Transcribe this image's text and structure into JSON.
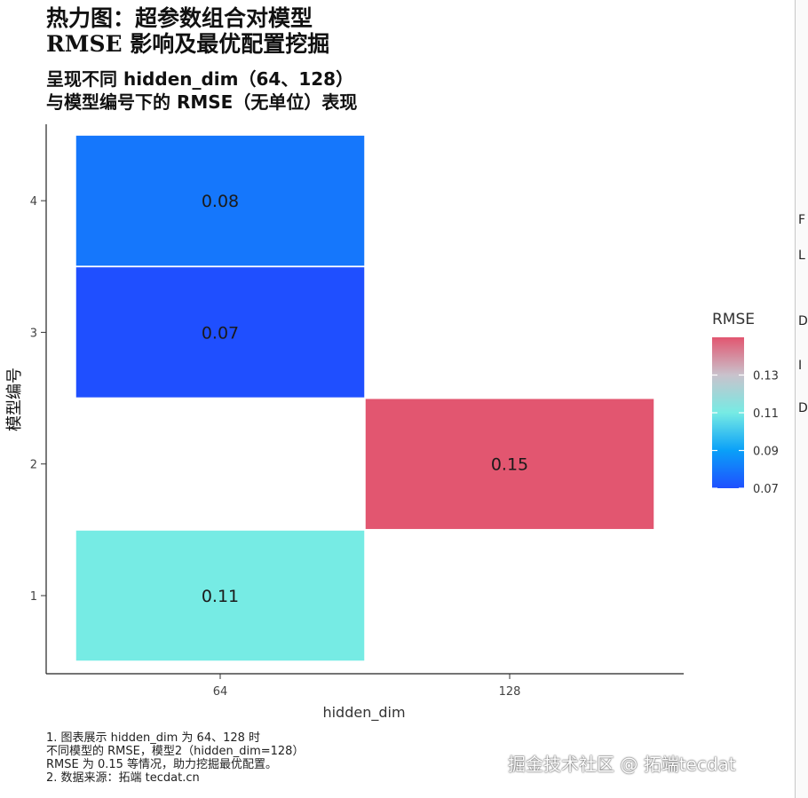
{
  "title_lines": [
    "热力图：超参数组合对模型",
    "RMSE 影响及最优配置挖掘"
  ],
  "subtitle_lines": [
    "呈现不同 hidden_dim（64、128）",
    "与模型编号下的 RMSE（无单位）表现"
  ],
  "caption_lines": [
    "1. 图表展示 hidden_dim 为 64、128 时",
    "不同模型的 RMSE，模型2（hidden_dim=128）",
    "RMSE 为 0.15 等情况，助力挖掘最优配置。",
    "2. 数据来源：拓端 tecdat.cn"
  ],
  "watermark": "掘金技术社区 @ 拓端tecdat",
  "edge_glyphs": [
    "F",
    "L",
    "D",
    "I",
    "D"
  ],
  "chart_data": {
    "type": "heatmap",
    "x_categories": [
      "64",
      "128"
    ],
    "y_categories": [
      "1",
      "2",
      "3",
      "4"
    ],
    "xlabel": "hidden_dim",
    "ylabel": "模型编号",
    "cells": [
      {
        "x": "64",
        "y": "1",
        "value": 0.11,
        "label": "0.11"
      },
      {
        "x": "128",
        "y": "2",
        "value": 0.15,
        "label": "0.15"
      },
      {
        "x": "64",
        "y": "3",
        "value": 0.07,
        "label": "0.07"
      },
      {
        "x": "64",
        "y": "4",
        "value": 0.08,
        "label": "0.08"
      }
    ],
    "legend": {
      "title": "RMSE",
      "position": "right",
      "range": [
        0.07,
        0.15
      ],
      "ticks": [
        0.07,
        0.09,
        0.11,
        0.13
      ],
      "tick_labels": [
        "0.07",
        "0.09",
        "0.11",
        "0.13"
      ],
      "gradient": [
        "#1f4fff",
        "#0aa0f8",
        "#76ebe4",
        "#e25670"
      ]
    },
    "grid": false
  }
}
